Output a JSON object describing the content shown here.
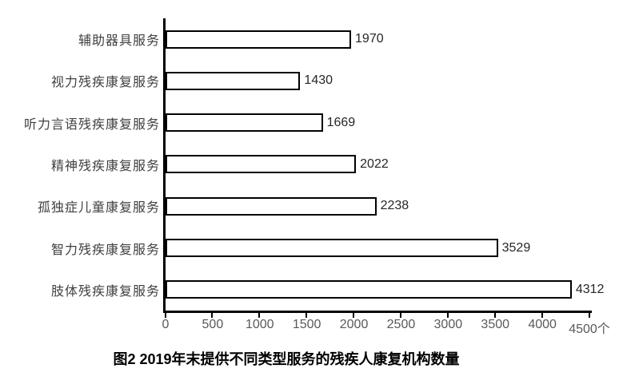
{
  "chart_data": {
    "type": "bar",
    "orientation": "horizontal",
    "caption": "图2 2019年末提供不同类型服务的残疾人康复机构数量",
    "categories": [
      "辅助器具服务",
      "视力残疾康复服务",
      "听力言语残疾康复服务",
      "精神残疾康复服务",
      "孤独症儿童康复服务",
      "智力残疾康复服务",
      "肢体残疾康复服务"
    ],
    "values": [
      1970,
      1430,
      1669,
      2022,
      2238,
      3529,
      4312
    ],
    "value_labels": [
      "1970",
      "1430",
      "1669",
      "2022",
      "2238",
      "3529",
      "4312"
    ],
    "x_ticks": [
      0,
      500,
      1000,
      1500,
      2000,
      2500,
      3000,
      3500,
      4000,
      4500
    ],
    "x_tick_labels": [
      "0",
      "500",
      "1000",
      "1500",
      "2000",
      "2500",
      "3000",
      "3500",
      "4000",
      "4500个"
    ],
    "x_unit": "个",
    "xlim": [
      0,
      4500
    ],
    "grid": false,
    "legend_position": "none",
    "colors": {
      "background": "#ffffff",
      "bar_fill": "#ffffff",
      "bar_border": "#000000",
      "axis_line": "#000000",
      "category_label": "#404040",
      "tick_label": "#595959",
      "value_label": "#262626",
      "caption": "#000000"
    }
  }
}
